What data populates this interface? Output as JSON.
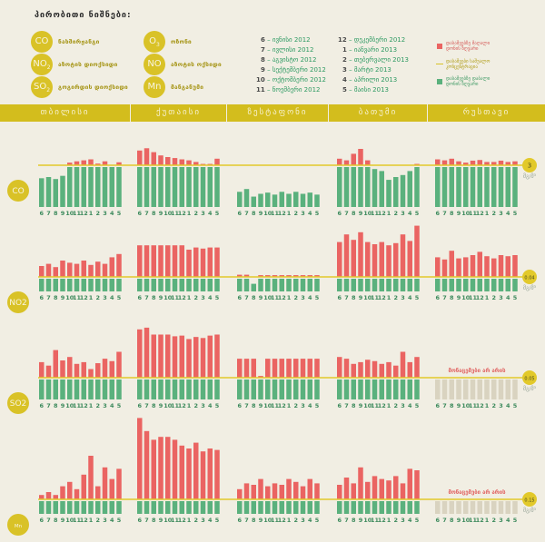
{
  "legend": {
    "title": "პირობითი ნიშნები:",
    "pollutants": [
      {
        "symbol": "CO",
        "name": "ნახშირჟანგი"
      },
      {
        "symbol": "O3",
        "name": "ოზონი"
      },
      {
        "symbol": "NO2",
        "name": "აზოტის დიოქსიდი"
      },
      {
        "symbol": "NO",
        "name": "აზოტის ოქსიდი"
      },
      {
        "symbol": "SO2",
        "name": "გოგირდის დიოქსიდი"
      },
      {
        "symbol": "Mn",
        "name": "მანგანუმი"
      }
    ],
    "months_left": [
      {
        "num": "6",
        "name": "ივნისი 2012"
      },
      {
        "num": "7",
        "name": "ივლისი 2012"
      },
      {
        "num": "8",
        "name": "აგვისტო 2012"
      },
      {
        "num": "9",
        "name": "სექტემბერი 2012"
      },
      {
        "num": "10",
        "name": "ოქტომბერი 2012"
      },
      {
        "num": "11",
        "name": "ნოემბერი 2012"
      }
    ],
    "months_right": [
      {
        "num": "12",
        "name": "დეკემბერი 2012"
      },
      {
        "num": "1",
        "name": "იანვარი 2013"
      },
      {
        "num": "2",
        "name": "თებერვალი 2013"
      },
      {
        "num": "3",
        "name": "მარტი 2013"
      },
      {
        "num": "4",
        "name": "აპრილი 2013"
      },
      {
        "num": "5",
        "name": "მაისი 2013"
      }
    ],
    "key": {
      "above": "დასაშვებზე მაღალი\nდონის ზღვარი",
      "norm": "დასაშვები საშუალო\nკონცენტრაცია",
      "below": "დასაშვებზე დაბალი\nდონის ზღვარი"
    },
    "colors": {
      "above": "#ea6462",
      "below": "#5ab17d",
      "norm": "#e2c92a",
      "nodata": "#d9d3c0"
    }
  },
  "chart_data": {
    "type": "bar",
    "title": "",
    "cities": [
      "თბილისი",
      "ქუთაისი",
      "ზესტაფონი",
      "ბათუმი",
      "რუსთავი"
    ],
    "months": [
      "6",
      "7",
      "8",
      "9",
      "10",
      "11",
      "12",
      "1",
      "2",
      "3",
      "4",
      "5"
    ],
    "unit_label": "მგ/მ³",
    "no_data_label": "მონაცემები არ არის",
    "value_scale": "relative to norm = 1.0",
    "rows": [
      {
        "pollutant": "CO",
        "norm_label": "3",
        "series": [
          {
            "city": "თბილისი",
            "values": [
              0.72,
              0.75,
              0.7,
              0.78,
              1.08,
              1.12,
              1.15,
              1.18,
              1.05,
              1.12,
              1.01,
              1.09
            ]
          },
          {
            "city": "ქუთაისი",
            "values": [
              1.45,
              1.52,
              1.4,
              1.3,
              1.25,
              1.22,
              1.18,
              1.15,
              1.1,
              1.04,
              1.04,
              1.2
            ]
          },
          {
            "city": "ზესტაფონი",
            "values": [
              0.38,
              0.45,
              0.26,
              0.33,
              0.36,
              0.31,
              0.38,
              0.33,
              0.38,
              0.33,
              0.36,
              0.31
            ]
          },
          {
            "city": "ბათუმი",
            "values": [
              1.2,
              1.15,
              1.35,
              1.5,
              1.15,
              0.95,
              0.9,
              0.68,
              0.75,
              0.8,
              0.9,
              1.04
            ]
          },
          {
            "city": "რუსთავი",
            "values": [
              1.18,
              1.15,
              1.2,
              1.12,
              1.08,
              1.14,
              1.16,
              1.1,
              1.1,
              1.14,
              1.1,
              1.12
            ]
          }
        ]
      },
      {
        "pollutant": "NO2",
        "norm_label": "0.04",
        "series": [
          {
            "city": "თბილისი",
            "values": [
              1.5,
              1.6,
              1.45,
              1.75,
              1.65,
              1.6,
              1.75,
              1.55,
              1.7,
              1.6,
              1.9,
              2.05
            ]
          },
          {
            "city": "ქუთაისი",
            "values": [
              2.45,
              2.45,
              2.45,
              2.45,
              2.45,
              2.45,
              2.45,
              2.25,
              2.35,
              2.3,
              2.35,
              2.35
            ]
          },
          {
            "city": "ზესტაფონი",
            "values": [
              1.1,
              1.1,
              0.6,
              1.08,
              1.08,
              1.08,
              1.08,
              1.08,
              1.08,
              1.08,
              1.08,
              1.08
            ]
          },
          {
            "city": "ბათუმი",
            "values": [
              2.6,
              2.95,
              2.7,
              3.05,
              2.6,
              2.5,
              2.6,
              2.45,
              2.55,
              2.95,
              2.65,
              3.35
            ]
          },
          {
            "city": "რუსთავი",
            "values": [
              1.9,
              1.8,
              2.2,
              1.85,
              1.9,
              2.0,
              2.15,
              1.95,
              1.85,
              2.0,
              1.95,
              2.0
            ]
          }
        ]
      },
      {
        "pollutant": "SO2",
        "norm_label": "0.05",
        "series": [
          {
            "city": "თბილისი",
            "values": [
              1.45,
              1.35,
              1.8,
              1.5,
              1.6,
              1.4,
              1.45,
              1.25,
              1.42,
              1.55,
              1.48,
              1.75
            ]
          },
          {
            "city": "ქუთაისი",
            "values": [
              2.4,
              2.45,
              2.25,
              2.25,
              2.25,
              2.2,
              2.22,
              2.12,
              2.18,
              2.15,
              2.22,
              2.25
            ]
          },
          {
            "city": "ზესტაფონი",
            "values": [
              1.55,
              1.55,
              1.55,
              1.05,
              1.55,
              1.55,
              1.55,
              1.55,
              1.55,
              1.55,
              1.55,
              1.55
            ]
          },
          {
            "city": "ბათუმი",
            "values": [
              1.6,
              1.55,
              1.4,
              1.45,
              1.52,
              1.48,
              1.4,
              1.45,
              1.35,
              1.75,
              1.45,
              1.6
            ]
          },
          {
            "city": "რუსთავი",
            "values": []
          }
        ]
      },
      {
        "pollutant": "Mn",
        "norm_label": "0.15",
        "series": [
          {
            "city": "თბილისი",
            "values": [
              1.15,
              1.25,
              1.15,
              1.45,
              1.6,
              1.35,
              1.85,
              2.5,
              1.45,
              2.1,
              1.7,
              2.05
            ]
          },
          {
            "city": "ქუთაისი",
            "values": [
              3.8,
              3.35,
              3.05,
              3.15,
              3.15,
              3.05,
              2.85,
              2.75,
              2.95,
              2.65,
              2.75,
              2.7
            ]
          },
          {
            "city": "ზესტაფონი",
            "values": [
              1.35,
              1.55,
              1.5,
              1.7,
              1.45,
              1.55,
              1.5,
              1.7,
              1.6,
              1.45,
              1.7,
              1.55
            ]
          },
          {
            "city": "ბათუმი",
            "values": [
              1.5,
              1.75,
              1.55,
              2.1,
              1.6,
              1.8,
              1.7,
              1.65,
              1.8,
              1.55,
              2.05,
              2.0
            ]
          },
          {
            "city": "რუსთავი",
            "values": []
          }
        ]
      }
    ]
  }
}
